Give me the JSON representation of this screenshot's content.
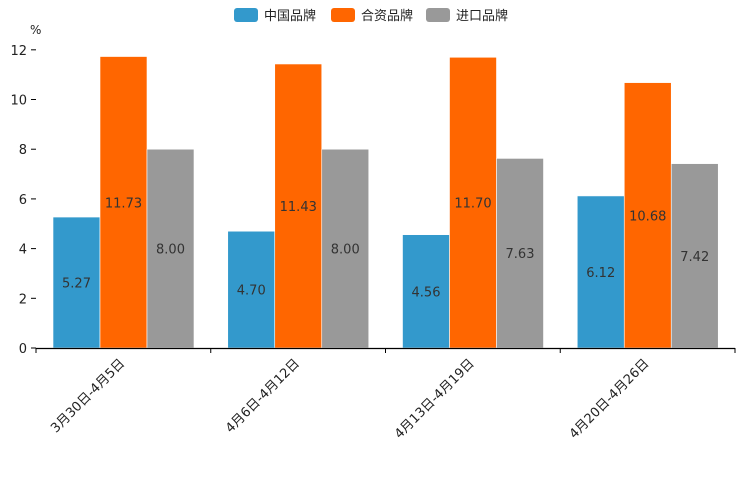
{
  "chart_data": {
    "type": "bar",
    "unit": "%",
    "categories": [
      "3月30日-4月5日",
      "4月6日-4月12日",
      "4月13日-4月19日",
      "4月20日-4月26日"
    ],
    "series": [
      {
        "name": "中国品牌",
        "color": "#3399cc",
        "values": [
          5.27,
          4.7,
          4.56,
          6.12
        ]
      },
      {
        "name": "合资品牌",
        "color": "#ff6600",
        "values": [
          11.73,
          11.43,
          11.7,
          10.68
        ]
      },
      {
        "name": "进口品牌",
        "color": "#999999",
        "values": [
          8.0,
          8.0,
          7.63,
          7.42
        ]
      }
    ],
    "yticks": [
      0,
      2,
      4,
      6,
      8,
      10,
      12
    ],
    "ylim": [
      0,
      13.2
    ],
    "legend_position": "top-center"
  }
}
